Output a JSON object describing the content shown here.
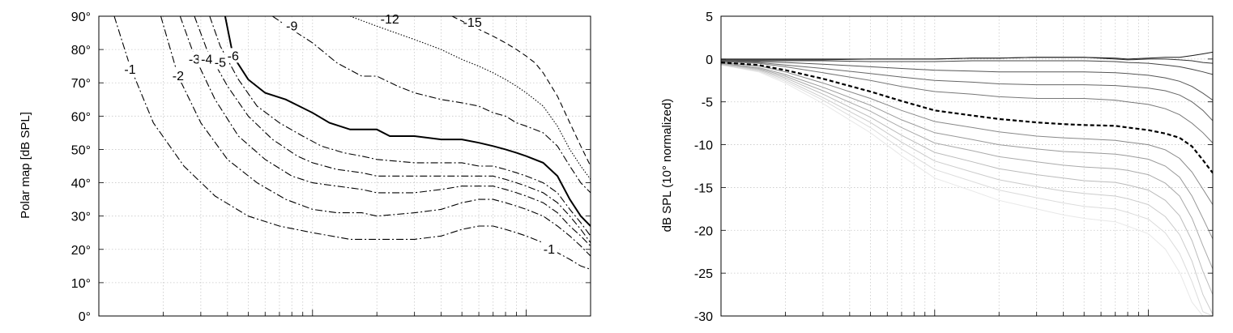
{
  "chart_data": [
    {
      "type": "line",
      "subtype": "contour",
      "title": "",
      "xlabel": "",
      "ylabel": "Polar map [dB SPL]",
      "xscale": "log",
      "xlim": [
        100,
        20000
      ],
      "ylim": [
        0,
        90
      ],
      "ytick_values": [
        0,
        10,
        20,
        30,
        40,
        50,
        60,
        70,
        80,
        90
      ],
      "ytick_labels": [
        "0°",
        "10°",
        "20°",
        "30°",
        "40°",
        "50°",
        "60°",
        "70°",
        "80°",
        "90°"
      ],
      "grid": true,
      "grid_style": "dotted",
      "series": [
        {
          "name": "-1",
          "style": "dashdot",
          "label_at": [
            [
              140,
              74
            ],
            [
              12800,
              20
            ]
          ],
          "x": [
            118,
            140,
            180,
            250,
            350,
            500,
            700,
            1000,
            1500,
            2000,
            3000,
            4000,
            5000,
            6000,
            7000,
            8000,
            9000,
            10000,
            12000,
            14000,
            16000,
            18000,
            20000
          ],
          "y": [
            90,
            75,
            58,
            45,
            36,
            30,
            27,
            25,
            23,
            23,
            23,
            24,
            26,
            27,
            27,
            26,
            25,
            24,
            22,
            19,
            17,
            15,
            14
          ]
        },
        {
          "name": "-2",
          "style": "dashdot",
          "label_at": [
            [
              235,
              72
            ]
          ],
          "x": [
            195,
            235,
            300,
            400,
            550,
            750,
            1000,
            1300,
            1700,
            2000,
            3000,
            4000,
            5000,
            6000,
            7000,
            8000,
            9000,
            10000,
            12000,
            14000,
            16000,
            18000,
            20000
          ],
          "y": [
            90,
            72,
            58,
            47,
            40,
            35,
            32,
            31,
            31,
            30,
            31,
            32,
            34,
            35,
            35,
            34,
            33,
            32,
            30,
            27,
            24,
            21,
            18
          ]
        },
        {
          "name": "-3",
          "style": "dashdot",
          "label_at": [
            [
              280,
              77
            ]
          ],
          "x": [
            240,
            280,
            350,
            450,
            600,
            800,
            1000,
            1300,
            1700,
            2000,
            3000,
            4000,
            5000,
            6000,
            7000,
            8000,
            9000,
            10000,
            12000,
            14000,
            16000,
            18000,
            20000
          ],
          "y": [
            90,
            78,
            65,
            54,
            47,
            42,
            40,
            39,
            38,
            37,
            37,
            38,
            39,
            39,
            39,
            38,
            37,
            36,
            34,
            31,
            27,
            24,
            21
          ]
        },
        {
          "name": "-4",
          "style": "dashdot",
          "label_at": [
            [
              320,
              77
            ]
          ],
          "x": [
            280,
            320,
            400,
            500,
            650,
            850,
            1000,
            1300,
            1700,
            2000,
            3000,
            4000,
            5000,
            6000,
            7000,
            8000,
            9000,
            10000,
            12000,
            14000,
            16000,
            18000,
            20000
          ],
          "y": [
            90,
            80,
            69,
            60,
            53,
            48,
            46,
            44,
            43,
            42,
            42,
            42,
            42,
            42,
            42,
            41,
            40,
            39,
            37,
            34,
            30,
            26,
            22
          ]
        },
        {
          "name": "-5",
          "style": "dashdot",
          "label_at": [
            [
              370,
              76
            ]
          ],
          "x": [
            330,
            370,
            450,
            550,
            700,
            900,
            1100,
            1400,
            1700,
            2000,
            3000,
            4000,
            5000,
            6000,
            7000,
            8000,
            9000,
            10000,
            12000,
            14000,
            16000,
            18000,
            20000
          ],
          "y": [
            90,
            81,
            71,
            63,
            58,
            54,
            51,
            49,
            48,
            47,
            46,
            46,
            46,
            45,
            45,
            44,
            43,
            42,
            40,
            37,
            32,
            28,
            24
          ]
        },
        {
          "name": "-6",
          "style": "solid",
          "label_at": [
            [
              425,
              78
            ]
          ],
          "x": [
            390,
            425,
            500,
            600,
            750,
            1000,
            1200,
            1500,
            1800,
            2000,
            2300,
            3000,
            4000,
            5000,
            6000,
            7000,
            8000,
            9000,
            10000,
            12000,
            14000,
            16000,
            18000,
            20000
          ],
          "y": [
            90,
            78,
            71,
            67,
            65,
            61,
            58,
            56,
            56,
            56,
            54,
            54,
            53,
            53,
            52,
            51,
            50,
            49,
            48,
            46,
            42,
            35,
            30,
            27
          ]
        },
        {
          "name": "-9",
          "style": "dashdot",
          "label_at": [
            [
              800,
              87
            ]
          ],
          "x": [
            650,
            800,
            1000,
            1300,
            1700,
            2000,
            2500,
            3000,
            4000,
            5000,
            6000,
            7000,
            8000,
            9000,
            10000,
            12000,
            14000,
            16000,
            18000,
            20000
          ],
          "y": [
            90,
            86,
            82,
            76,
            72,
            72,
            69,
            67,
            65,
            64,
            63,
            61,
            60,
            58,
            57,
            55,
            51,
            45,
            40,
            37
          ]
        },
        {
          "name": "-12",
          "style": "dotted",
          "label_at": [
            [
              2300,
              89
            ]
          ],
          "x": [
            1500,
            2000,
            3000,
            4000,
            5000,
            6000,
            7000,
            8000,
            9000,
            10000,
            12000,
            14000,
            16000,
            18000,
            20000
          ],
          "y": [
            90,
            87,
            83,
            80,
            77,
            75,
            73,
            71,
            69,
            67,
            63,
            57,
            50,
            45,
            41
          ]
        },
        {
          "name": "-15",
          "style": "dashed",
          "label_at": [
            [
              5600,
              88
            ]
          ],
          "x": [
            4500,
            5600,
            7000,
            8000,
            9000,
            10000,
            11000,
            12000,
            14000,
            16000,
            18000,
            20000
          ],
          "y": [
            90,
            87,
            84,
            82,
            80,
            78,
            76,
            73,
            66,
            58,
            51,
            45
          ]
        }
      ]
    },
    {
      "type": "line",
      "title": "",
      "xlabel": "",
      "ylabel": "dB SPL (10° normalized)",
      "xscale": "log",
      "xlim": [
        100,
        20000
      ],
      "ylim": [
        -30,
        5
      ],
      "ytick_values": [
        5,
        0,
        -5,
        -10,
        -15,
        -20,
        -25,
        -30
      ],
      "ytick_labels": [
        "5",
        "0",
        "-5",
        "-10",
        "-15",
        "-20",
        "-25",
        "-30"
      ],
      "grid": true,
      "grid_style": "dotted",
      "x": [
        100,
        150,
        200,
        300,
        500,
        700,
        1000,
        1500,
        2000,
        3000,
        4000,
        5000,
        7000,
        8000,
        10000,
        12000,
        14000,
        16000,
        18000,
        20000
      ],
      "highlight_series": 6,
      "series": [
        {
          "color": "#1a1a1a",
          "values": [
            0,
            0,
            0,
            0,
            0,
            0,
            0,
            0.1,
            0.1,
            0.2,
            0.2,
            0.2,
            0.1,
            0,
            0.1,
            0.2,
            0.2,
            0.4,
            0.6,
            0.8
          ]
        },
        {
          "color": "#333333",
          "values": [
            -0.1,
            -0.1,
            -0.1,
            -0.1,
            0,
            0,
            0,
            0.1,
            0.1,
            0.2,
            0.2,
            0.2,
            0,
            -0.1,
            0,
            0,
            -0.1,
            -0.2,
            -0.4,
            -0.5
          ]
        },
        {
          "color": "#444444",
          "values": [
            -0.2,
            -0.2,
            -0.2,
            -0.2,
            -0.3,
            -0.3,
            -0.3,
            -0.2,
            -0.2,
            -0.2,
            -0.2,
            -0.2,
            -0.3,
            -0.4,
            -0.5,
            -0.7,
            -0.9,
            -1.2,
            -1.5,
            -1.8
          ]
        },
        {
          "color": "#555555",
          "values": [
            -0.2,
            -0.3,
            -0.4,
            -0.6,
            -0.9,
            -1.1,
            -1.3,
            -1.4,
            -1.5,
            -1.5,
            -1.5,
            -1.5,
            -1.6,
            -1.7,
            -1.9,
            -2.2,
            -2.6,
            -3.2,
            -4,
            -4.8
          ]
        },
        {
          "color": "#666666",
          "values": [
            -0.3,
            -0.4,
            -0.7,
            -1.1,
            -1.7,
            -2.1,
            -2.5,
            -2.7,
            -2.9,
            -3,
            -3,
            -3,
            -3.1,
            -3.2,
            -3.4,
            -3.7,
            -4.2,
            -5,
            -6,
            -7.2
          ]
        },
        {
          "color": "#777777",
          "values": [
            -0.3,
            -0.5,
            -0.9,
            -1.6,
            -2.5,
            -3.2,
            -3.8,
            -4.1,
            -4.4,
            -4.6,
            -4.6,
            -4.6,
            -4.8,
            -5,
            -5.3,
            -5.8,
            -6.5,
            -7.5,
            -8.6,
            -9.8
          ]
        },
        {
          "color": "#000000",
          "dashed": true,
          "values": [
            -0.4,
            -0.7,
            -1.3,
            -2.3,
            -3.8,
            -4.9,
            -6,
            -6.6,
            -7,
            -7.4,
            -7.6,
            -7.7,
            -7.8,
            -8,
            -8.3,
            -8.7,
            -9.2,
            -10.2,
            -11.8,
            -13.3
          ]
        },
        {
          "color": "#888888",
          "values": [
            -0.4,
            -0.8,
            -1.5,
            -2.8,
            -4.6,
            -6,
            -7.3,
            -8,
            -8.5,
            -9,
            -9.2,
            -9.3,
            -9.5,
            -9.7,
            -10,
            -10.6,
            -11.6,
            -13.2,
            -15.2,
            -17
          ]
        },
        {
          "color": "#999999",
          "values": [
            -0.5,
            -1,
            -1.8,
            -3.3,
            -5.4,
            -7.1,
            -8.6,
            -9.4,
            -10,
            -10.5,
            -10.8,
            -10.9,
            -11.1,
            -11.3,
            -11.7,
            -12.5,
            -13.8,
            -16,
            -18.6,
            -21
          ]
        },
        {
          "color": "#aaaaaa",
          "values": [
            -0.5,
            -1.1,
            -2,
            -3.7,
            -6.1,
            -8,
            -9.8,
            -10.7,
            -11.4,
            -12,
            -12.4,
            -12.6,
            -12.8,
            -13,
            -13.5,
            -14.5,
            -16,
            -18.6,
            -21.8,
            -24.5
          ]
        },
        {
          "color": "#bbbbbb",
          "values": [
            -0.6,
            -1.2,
            -2.2,
            -4.1,
            -6.8,
            -8.9,
            -10.9,
            -12,
            -12.8,
            -13.5,
            -13.9,
            -14.2,
            -14.4,
            -14.7,
            -15.3,
            -16.5,
            -18.3,
            -21.2,
            -24.8,
            -27.5
          ]
        },
        {
          "color": "#cccccc",
          "values": [
            -0.6,
            -1.3,
            -2.4,
            -4.5,
            -7.4,
            -9.7,
            -11.9,
            -13.2,
            -14.1,
            -14.9,
            -15.4,
            -15.7,
            -16,
            -16.3,
            -17,
            -18.4,
            -20.5,
            -23.6,
            -27.5,
            -29.8
          ]
        },
        {
          "color": "#dcdcdc",
          "values": [
            -0.7,
            -1.4,
            -2.6,
            -4.8,
            -8,
            -10.5,
            -12.9,
            -14.3,
            -15.3,
            -16.2,
            -16.8,
            -17.2,
            -17.5,
            -17.9,
            -18.7,
            -20.3,
            -22.7,
            -26,
            -29.5,
            -30
          ]
        },
        {
          "color": "#e8e8e8",
          "values": [
            -0.7,
            -1.5,
            -2.8,
            -5.2,
            -8.6,
            -11.3,
            -13.9,
            -15.4,
            -16.5,
            -17.5,
            -18.2,
            -18.6,
            -19,
            -19.5,
            -20.4,
            -22.2,
            -24.9,
            -28.4,
            -30,
            -30
          ]
        }
      ]
    }
  ]
}
